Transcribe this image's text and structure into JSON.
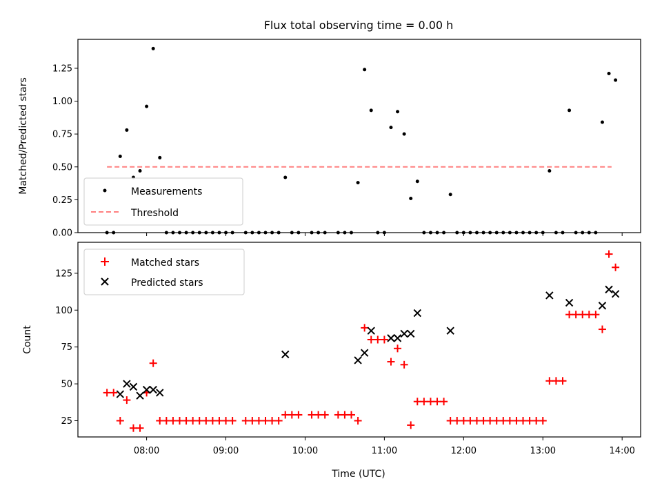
{
  "chart_data": [
    {
      "type": "scatter",
      "title": "Flux total observing time = 0.00 h",
      "ylabel": "Matched/Predicted stars",
      "ylim": [
        0,
        1.47
      ],
      "yticks": [
        0.0,
        0.25,
        0.5,
        0.75,
        1.0,
        1.25
      ],
      "ytick_labels": [
        "0.00",
        "0.25",
        "0.50",
        "0.75",
        "1.00",
        "1.25"
      ],
      "legend": {
        "placement": "lower-left",
        "entries": [
          "Measurements",
          "Threshold"
        ]
      },
      "threshold": {
        "name": "Threshold",
        "value": 0.5,
        "x_start": "07:30",
        "x_end": "13:52",
        "color": "#ff7f7f"
      },
      "series": [
        {
          "name": "Measurements",
          "color": "#000000",
          "points": [
            [
              "07:30",
              0
            ],
            [
              "07:35",
              0
            ],
            [
              "07:40",
              0.58
            ],
            [
              "07:45",
              0.78
            ],
            [
              "07:50",
              0.42
            ],
            [
              "07:55",
              0.47
            ],
            [
              "08:00",
              0.96
            ],
            [
              "08:05",
              1.4
            ],
            [
              "08:10",
              0.57
            ],
            [
              "08:15",
              0
            ],
            [
              "08:20",
              0
            ],
            [
              "08:25",
              0
            ],
            [
              "08:30",
              0
            ],
            [
              "08:35",
              0
            ],
            [
              "08:40",
              0
            ],
            [
              "08:45",
              0
            ],
            [
              "08:50",
              0
            ],
            [
              "08:55",
              0
            ],
            [
              "09:00",
              0
            ],
            [
              "09:05",
              0
            ],
            [
              "09:15",
              0
            ],
            [
              "09:20",
              0
            ],
            [
              "09:25",
              0
            ],
            [
              "09:30",
              0
            ],
            [
              "09:35",
              0
            ],
            [
              "09:40",
              0
            ],
            [
              "09:45",
              0.42
            ],
            [
              "09:50",
              0
            ],
            [
              "09:55",
              0
            ],
            [
              "10:05",
              0
            ],
            [
              "10:10",
              0
            ],
            [
              "10:15",
              0
            ],
            [
              "10:25",
              0
            ],
            [
              "10:30",
              0
            ],
            [
              "10:35",
              0
            ],
            [
              "10:40",
              0.38
            ],
            [
              "10:45",
              1.24
            ],
            [
              "10:50",
              0.93
            ],
            [
              "10:55",
              0
            ],
            [
              "11:00",
              0
            ],
            [
              "11:05",
              0.8
            ],
            [
              "11:10",
              0.92
            ],
            [
              "11:15",
              0.75
            ],
            [
              "11:20",
              0.26
            ],
            [
              "11:25",
              0.39
            ],
            [
              "11:30",
              0
            ],
            [
              "11:35",
              0
            ],
            [
              "11:40",
              0
            ],
            [
              "11:45",
              0
            ],
            [
              "11:50",
              0.29
            ],
            [
              "11:55",
              0
            ],
            [
              "12:00",
              0
            ],
            [
              "12:05",
              0
            ],
            [
              "12:10",
              0
            ],
            [
              "12:15",
              0
            ],
            [
              "12:20",
              0
            ],
            [
              "12:25",
              0
            ],
            [
              "12:30",
              0
            ],
            [
              "12:35",
              0
            ],
            [
              "12:40",
              0
            ],
            [
              "12:45",
              0
            ],
            [
              "12:50",
              0
            ],
            [
              "12:55",
              0
            ],
            [
              "13:00",
              0
            ],
            [
              "13:05",
              0.47
            ],
            [
              "13:10",
              0
            ],
            [
              "13:15",
              0
            ],
            [
              "13:20",
              0.93
            ],
            [
              "13:25",
              0
            ],
            [
              "13:30",
              0
            ],
            [
              "13:35",
              0
            ],
            [
              "13:40",
              0
            ],
            [
              "13:45",
              0.84
            ],
            [
              "13:50",
              1.21
            ],
            [
              "13:55",
              1.16
            ]
          ]
        }
      ]
    },
    {
      "type": "scatter",
      "xlabel": "Time (UTC)",
      "ylabel": "Count",
      "ylim": [
        14,
        146
      ],
      "yticks": [
        25,
        50,
        75,
        100,
        125
      ],
      "ytick_labels": [
        "25",
        "50",
        "75",
        "100",
        "125"
      ],
      "xlim": [
        "07:08",
        "14:14"
      ],
      "xticks": [
        "08:00",
        "09:00",
        "10:00",
        "11:00",
        "12:00",
        "13:00",
        "14:00"
      ],
      "legend": {
        "placement": "upper-left",
        "entries": [
          "Matched stars",
          "Predicted stars"
        ]
      },
      "series": [
        {
          "name": "Matched stars",
          "marker": "plus",
          "color": "#ff0000",
          "points": [
            [
              "07:30",
              44
            ],
            [
              "07:35",
              44
            ],
            [
              "07:40",
              25
            ],
            [
              "07:45",
              39
            ],
            [
              "07:50",
              20
            ],
            [
              "07:55",
              20
            ],
            [
              "08:00",
              44
            ],
            [
              "08:05",
              64
            ],
            [
              "08:10",
              25
            ],
            [
              "08:15",
              25
            ],
            [
              "08:20",
              25
            ],
            [
              "08:25",
              25
            ],
            [
              "08:30",
              25
            ],
            [
              "08:35",
              25
            ],
            [
              "08:40",
              25
            ],
            [
              "08:45",
              25
            ],
            [
              "08:50",
              25
            ],
            [
              "08:55",
              25
            ],
            [
              "09:00",
              25
            ],
            [
              "09:05",
              25
            ],
            [
              "09:15",
              25
            ],
            [
              "09:20",
              25
            ],
            [
              "09:25",
              25
            ],
            [
              "09:30",
              25
            ],
            [
              "09:35",
              25
            ],
            [
              "09:40",
              25
            ],
            [
              "09:45",
              29
            ],
            [
              "09:50",
              29
            ],
            [
              "09:55",
              29
            ],
            [
              "10:05",
              29
            ],
            [
              "10:10",
              29
            ],
            [
              "10:15",
              29
            ],
            [
              "10:25",
              29
            ],
            [
              "10:30",
              29
            ],
            [
              "10:35",
              29
            ],
            [
              "10:40",
              25
            ],
            [
              "10:45",
              88
            ],
            [
              "10:50",
              80
            ],
            [
              "10:55",
              80
            ],
            [
              "11:00",
              80
            ],
            [
              "11:05",
              65
            ],
            [
              "11:10",
              74
            ],
            [
              "11:15",
              63
            ],
            [
              "11:20",
              22
            ],
            [
              "11:25",
              38
            ],
            [
              "11:30",
              38
            ],
            [
              "11:35",
              38
            ],
            [
              "11:40",
              38
            ],
            [
              "11:45",
              38
            ],
            [
              "11:50",
              25
            ],
            [
              "11:55",
              25
            ],
            [
              "12:00",
              25
            ],
            [
              "12:05",
              25
            ],
            [
              "12:10",
              25
            ],
            [
              "12:15",
              25
            ],
            [
              "12:20",
              25
            ],
            [
              "12:25",
              25
            ],
            [
              "12:30",
              25
            ],
            [
              "12:35",
              25
            ],
            [
              "12:40",
              25
            ],
            [
              "12:45",
              25
            ],
            [
              "12:50",
              25
            ],
            [
              "12:55",
              25
            ],
            [
              "13:00",
              25
            ],
            [
              "13:05",
              52
            ],
            [
              "13:10",
              52
            ],
            [
              "13:15",
              52
            ],
            [
              "13:20",
              97
            ],
            [
              "13:25",
              97
            ],
            [
              "13:30",
              97
            ],
            [
              "13:35",
              97
            ],
            [
              "13:40",
              97
            ],
            [
              "13:45",
              87
            ],
            [
              "13:50",
              138
            ],
            [
              "13:55",
              129
            ]
          ]
        },
        {
          "name": "Predicted stars",
          "marker": "x",
          "color": "#000000",
          "points": [
            [
              "07:40",
              43
            ],
            [
              "07:45",
              50
            ],
            [
              "07:50",
              48
            ],
            [
              "07:55",
              42
            ],
            [
              "08:00",
              46
            ],
            [
              "08:05",
              46
            ],
            [
              "08:10",
              44
            ],
            [
              "09:45",
              70
            ],
            [
              "10:40",
              66
            ],
            [
              "10:45",
              71
            ],
            [
              "10:50",
              86
            ],
            [
              "11:05",
              81
            ],
            [
              "11:10",
              81
            ],
            [
              "11:15",
              84
            ],
            [
              "11:20",
              84
            ],
            [
              "11:25",
              98
            ],
            [
              "11:50",
              86
            ],
            [
              "13:05",
              110
            ],
            [
              "13:20",
              105
            ],
            [
              "13:45",
              103
            ],
            [
              "13:50",
              114
            ],
            [
              "13:55",
              111
            ]
          ]
        }
      ]
    }
  ]
}
